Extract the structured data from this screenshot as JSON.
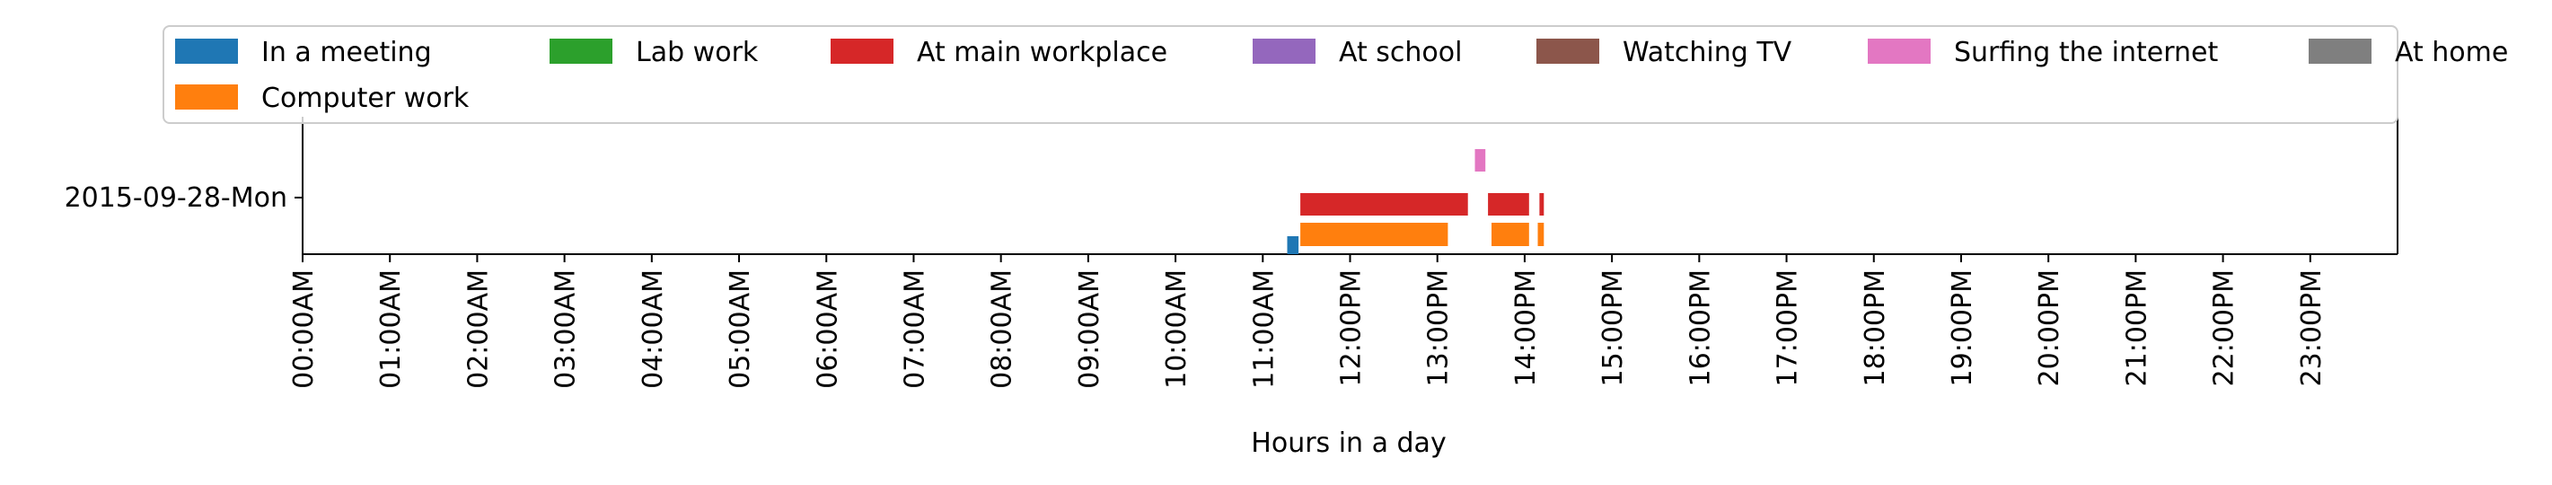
{
  "chart_data": {
    "type": "bar",
    "orientation": "horizontal",
    "title": "",
    "xlabel": "Hours in a day",
    "ylabel": "",
    "xlim": [
      0,
      24
    ],
    "xticks": [
      "00:00AM",
      "01:00AM",
      "02:00AM",
      "03:00AM",
      "04:00AM",
      "05:00AM",
      "06:00AM",
      "07:00AM",
      "08:00AM",
      "09:00AM",
      "10:00AM",
      "11:00AM",
      "12:00PM",
      "13:00PM",
      "14:00PM",
      "15:00PM",
      "16:00PM",
      "17:00PM",
      "18:00PM",
      "19:00PM",
      "20:00PM",
      "21:00PM",
      "22:00PM",
      "23:00PM"
    ],
    "categories": [
      "2015-09-28-Mon"
    ],
    "grid": false,
    "legend": {
      "placement": "top",
      "entries": [
        {
          "name": "In a meeting",
          "color": "#1f77b4"
        },
        {
          "name": "Lab work",
          "color": "#2ca02c"
        },
        {
          "name": "At main workplace",
          "color": "#d62728"
        },
        {
          "name": "At school",
          "color": "#9467bd"
        },
        {
          "name": "Watching TV",
          "color": "#8c564b"
        },
        {
          "name": "Surfing the internet",
          "color": "#e377c2"
        },
        {
          "name": "At home",
          "color": "#7f7f7f"
        },
        {
          "name": "Computer work",
          "color": "#ff7f0e"
        }
      ]
    },
    "series": [
      {
        "name": "In a meeting",
        "color": "#1f77b4",
        "lane": 0,
        "intervals": [
          [
            11.28,
            11.41
          ]
        ]
      },
      {
        "name": "Computer work",
        "color": "#ff7f0e",
        "lane": 1,
        "intervals": [
          [
            11.43,
            13.12
          ],
          [
            13.62,
            14.05
          ],
          [
            14.15,
            14.22
          ]
        ]
      },
      {
        "name": "At main workplace",
        "color": "#d62728",
        "lane": 2,
        "intervals": [
          [
            11.43,
            13.35
          ],
          [
            13.58,
            14.05
          ],
          [
            14.17,
            14.22
          ]
        ]
      },
      {
        "name": "Surfing the internet",
        "color": "#e377c2",
        "lane": 3,
        "intervals": [
          [
            13.43,
            13.55
          ]
        ]
      }
    ]
  }
}
